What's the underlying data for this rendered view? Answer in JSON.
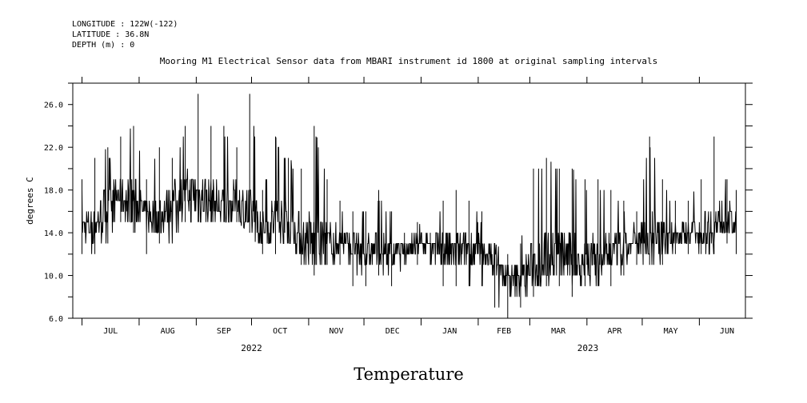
{
  "header": {
    "longitude": "LONGITUDE : 122W(-122)",
    "latitude": "LATITUDE : 36.8N",
    "depth": "DEPTH (m) : 0"
  },
  "chart_data": {
    "type": "line",
    "title": "Mooring M1 Electrical Sensor data from MBARI instrument id 1800 at original sampling intervals",
    "bottom_title": "Temperature",
    "ylabel": "degrees C",
    "xlabel": "",
    "ylim": [
      6.0,
      28.0
    ],
    "yticks": [
      "6.0",
      "10.0",
      "14.0",
      "18.0",
      "22.0",
      "26.0"
    ],
    "xlim": [
      "2022-06-26",
      "2023-06-26"
    ],
    "month_labels": [
      "JUL",
      "AUG",
      "SEP",
      "OCT",
      "NOV",
      "DEC",
      "JAN",
      "FEB",
      "MAR",
      "APR",
      "MAY",
      "JUN"
    ],
    "year_labels": [
      "2022",
      "2023"
    ],
    "grid": false,
    "series": [
      {
        "x": [
          "2022-07-01",
          "2022-07-08",
          "2022-07-15",
          "2022-07-22",
          "2022-07-29",
          "2022-08-05",
          "2022-08-12",
          "2022-08-19",
          "2022-08-26",
          "2022-09-02",
          "2022-09-09",
          "2022-09-16",
          "2022-09-23",
          "2022-09-30",
          "2022-10-07",
          "2022-10-14",
          "2022-10-21",
          "2022-10-28",
          "2022-11-04",
          "2022-11-11",
          "2022-11-18",
          "2022-11-25",
          "2022-12-02",
          "2022-12-09",
          "2022-12-16",
          "2022-12-23",
          "2022-12-30",
          "2023-01-06",
          "2023-01-13",
          "2023-01-20",
          "2023-01-27",
          "2023-02-03",
          "2023-02-10",
          "2023-02-17",
          "2023-02-24",
          "2023-03-03",
          "2023-03-10",
          "2023-03-17",
          "2023-03-24",
          "2023-03-31",
          "2023-04-07",
          "2023-04-14",
          "2023-04-21",
          "2023-04-28",
          "2023-05-05",
          "2023-05-12",
          "2023-05-19",
          "2023-05-26",
          "2023-06-02",
          "2023-06-09",
          "2023-06-16",
          "2023-06-21"
        ],
        "mean": [
          14.5,
          14.5,
          16.5,
          17.5,
          17.0,
          15.5,
          15.5,
          17.0,
          17.5,
          17.5,
          17.0,
          16.5,
          17.0,
          15.5,
          14.5,
          15.0,
          15.0,
          13.5,
          13.0,
          13.0,
          13.5,
          12.5,
          12.0,
          12.5,
          12.0,
          12.5,
          13.0,
          13.0,
          12.5,
          12.0,
          12.5,
          12.0,
          11.5,
          9.5,
          9.5,
          11.0,
          12.0,
          12.0,
          11.5,
          11.5,
          12.0,
          12.0,
          12.5,
          13.0,
          13.5,
          13.5,
          14.0,
          14.0,
          14.0,
          14.5,
          15.5,
          14.5
        ],
        "min": [
          12.0,
          12.0,
          13.0,
          15.0,
          14.0,
          12.0,
          13.0,
          13.0,
          15.0,
          15.0,
          15.0,
          15.0,
          15.0,
          14.0,
          12.0,
          12.0,
          13.0,
          11.0,
          10.0,
          11.0,
          11.0,
          9.0,
          9.0,
          10.0,
          9.0,
          11.0,
          11.0,
          11.0,
          9.0,
          9.0,
          9.0,
          9.0,
          7.0,
          6.0,
          7.0,
          8.0,
          9.0,
          9.0,
          8.0,
          9.0,
          9.0,
          9.0,
          10.0,
          11.0,
          11.0,
          11.0,
          12.0,
          12.0,
          12.0,
          12.0,
          13.0,
          12.0
        ],
        "max": [
          19.0,
          21.0,
          22.0,
          23.0,
          24.0,
          19.0,
          22.0,
          21.0,
          24.0,
          27.0,
          24.0,
          24.0,
          22.0,
          27.0,
          18.0,
          23.0,
          21.0,
          20.0,
          24.0,
          19.0,
          17.0,
          16.0,
          16.0,
          18.0,
          16.0,
          14.0,
          15.0,
          14.0,
          17.0,
          18.0,
          17.0,
          16.0,
          13.0,
          12.0,
          13.0,
          20.0,
          21.0,
          20.0,
          20.0,
          19.0,
          19.0,
          18.0,
          17.0,
          16.0,
          23.0,
          19.0,
          17.0,
          17.0,
          19.0,
          23.0,
          19.0,
          18.0
        ]
      }
    ]
  }
}
